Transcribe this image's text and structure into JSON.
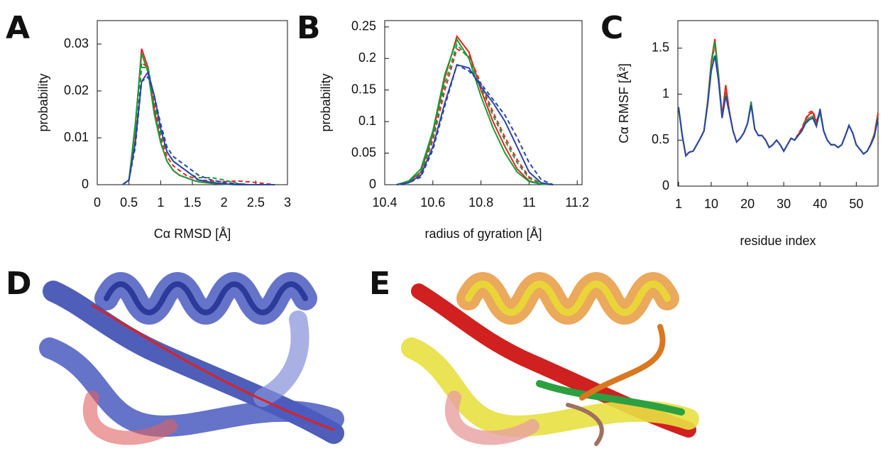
{
  "chart_data": [
    {
      "type": "line",
      "label": "A",
      "xlabel": "Cα RMSD [Å]",
      "ylabel": "probability",
      "xlim": [
        0,
        3
      ],
      "xticks": [
        0,
        0.5,
        1,
        1.5,
        2,
        2.5,
        3
      ],
      "ylim": [
        0,
        0.035
      ],
      "yticks": [
        0,
        0.01,
        0.02,
        0.03
      ],
      "x": [
        0.4,
        0.5,
        0.6,
        0.7,
        0.8,
        0.9,
        1.0,
        1.1,
        1.2,
        1.3,
        1.4,
        1.5,
        1.6,
        1.8,
        2.0,
        2.2,
        2.4,
        2.6,
        2.8
      ],
      "series": [
        {
          "color": "#e8231e",
          "dash": false,
          "values": [
            0,
            0.001,
            0.012,
            0.029,
            0.025,
            0.016,
            0.009,
            0.005,
            0.003,
            0.002,
            0.0015,
            0.001,
            0.0006,
            0.0003,
            0.0001,
            0,
            0,
            0,
            0
          ]
        },
        {
          "color": "#e8231e",
          "dash": true,
          "values": [
            0,
            0.001,
            0.011,
            0.026,
            0.025,
            0.017,
            0.01,
            0.006,
            0.004,
            0.003,
            0.002,
            0.0015,
            0.001,
            0.0008,
            0.0006,
            0.0008,
            0.0006,
            0.0003,
            0
          ]
        },
        {
          "color": "#1f9a3a",
          "dash": false,
          "values": [
            0,
            0.001,
            0.013,
            0.028,
            0.024,
            0.015,
            0.009,
            0.005,
            0.003,
            0.002,
            0.0015,
            0.001,
            0.0006,
            0.0003,
            0.0001,
            0,
            0,
            0,
            0
          ]
        },
        {
          "color": "#1f9a3a",
          "dash": true,
          "values": [
            0,
            0.001,
            0.01,
            0.025,
            0.025,
            0.018,
            0.011,
            0.007,
            0.005,
            0.004,
            0.003,
            0.002,
            0.0015,
            0.0015,
            0.001,
            0.0003,
            0,
            0,
            0
          ]
        },
        {
          "color": "#2a46a8",
          "dash": false,
          "values": [
            0,
            0.001,
            0.009,
            0.022,
            0.024,
            0.019,
            0.012,
            0.007,
            0.005,
            0.004,
            0.003,
            0.002,
            0.001,
            0.0005,
            0.0002,
            0,
            0,
            0,
            0
          ]
        },
        {
          "color": "#2a46a8",
          "dash": true,
          "values": [
            0,
            0.001,
            0.008,
            0.022,
            0.023,
            0.019,
            0.013,
            0.008,
            0.006,
            0.005,
            0.004,
            0.003,
            0.002,
            0.001,
            0.0005,
            0.0002,
            0,
            0,
            0
          ]
        }
      ]
    },
    {
      "type": "line",
      "label": "B",
      "xlabel": "radius of gyration [Å]",
      "ylabel": "probability",
      "xlim": [
        10.4,
        11.22
      ],
      "xticks": [
        10.4,
        10.6,
        10.8,
        11,
        11.2
      ],
      "ylim": [
        0,
        0.26
      ],
      "yticks": [
        0,
        0.05,
        0.1,
        0.15,
        0.2,
        0.25
      ],
      "x": [
        10.45,
        10.5,
        10.55,
        10.6,
        10.65,
        10.7,
        10.75,
        10.8,
        10.85,
        10.9,
        10.95,
        11,
        11.05,
        11.1
      ],
      "series": [
        {
          "color": "#e8231e",
          "dash": false,
          "values": [
            0,
            0.005,
            0.02,
            0.08,
            0.17,
            0.235,
            0.21,
            0.15,
            0.1,
            0.06,
            0.025,
            0.006,
            0.001,
            0
          ]
        },
        {
          "color": "#e8231e",
          "dash": true,
          "values": [
            0,
            0.004,
            0.018,
            0.07,
            0.15,
            0.215,
            0.205,
            0.16,
            0.115,
            0.075,
            0.04,
            0.012,
            0.002,
            0
          ]
        },
        {
          "color": "#1f9a3a",
          "dash": false,
          "values": [
            0,
            0.006,
            0.025,
            0.085,
            0.175,
            0.23,
            0.2,
            0.14,
            0.09,
            0.05,
            0.02,
            0.005,
            0.001,
            0
          ]
        },
        {
          "color": "#1f9a3a",
          "dash": true,
          "values": [
            0,
            0.005,
            0.02,
            0.075,
            0.16,
            0.222,
            0.2,
            0.155,
            0.11,
            0.07,
            0.035,
            0.01,
            0.002,
            0
          ]
        },
        {
          "color": "#2a46a8",
          "dash": false,
          "values": [
            0,
            0.003,
            0.015,
            0.06,
            0.13,
            0.19,
            0.185,
            0.155,
            0.13,
            0.1,
            0.06,
            0.02,
            0.003,
            0
          ]
        },
        {
          "color": "#2a46a8",
          "dash": true,
          "values": [
            0,
            0.003,
            0.012,
            0.055,
            0.125,
            0.19,
            0.18,
            0.16,
            0.135,
            0.11,
            0.075,
            0.035,
            0.008,
            0
          ]
        }
      ]
    },
    {
      "type": "line",
      "label": "C",
      "xlabel": "residue index",
      "ylabel": "Cα RMSF [Å²]",
      "xlim": [
        0.8,
        56
      ],
      "xticks": [
        1,
        10,
        20,
        30,
        40,
        50
      ],
      "ylim": [
        0,
        1.8
      ],
      "yticks": [
        0,
        0.5,
        1,
        1.5
      ],
      "x": [
        1,
        2,
        3,
        4,
        5,
        6,
        7,
        8,
        9,
        10,
        11,
        12,
        13,
        14,
        15,
        16,
        17,
        18,
        19,
        20,
        21,
        22,
        23,
        24,
        25,
        26,
        27,
        28,
        29,
        30,
        31,
        32,
        33,
        34,
        35,
        36,
        37,
        38,
        39,
        40,
        41,
        42,
        43,
        44,
        45,
        46,
        47,
        48,
        49,
        50,
        51,
        52,
        53,
        54,
        55,
        56
      ],
      "series": [
        {
          "color": "#e8231e",
          "dash": false,
          "values": [
            0.85,
            0.55,
            0.33,
            0.37,
            0.38,
            0.45,
            0.52,
            0.6,
            0.92,
            1.35,
            1.6,
            1.22,
            0.76,
            1.1,
            0.82,
            0.6,
            0.48,
            0.52,
            0.58,
            0.68,
            0.9,
            0.62,
            0.55,
            0.55,
            0.5,
            0.42,
            0.45,
            0.5,
            0.45,
            0.38,
            0.45,
            0.52,
            0.5,
            0.56,
            0.62,
            0.72,
            0.78,
            0.8,
            0.7,
            0.82,
            0.6,
            0.5,
            0.45,
            0.45,
            0.42,
            0.45,
            0.55,
            0.66,
            0.58,
            0.45,
            0.4,
            0.35,
            0.38,
            0.46,
            0.57,
            0.8
          ]
        },
        {
          "color": "#e8231e",
          "dash": true,
          "values": [
            0.85,
            0.55,
            0.34,
            0.37,
            0.38,
            0.45,
            0.52,
            0.6,
            0.9,
            1.3,
            1.55,
            1.2,
            0.75,
            1.02,
            0.8,
            0.6,
            0.48,
            0.52,
            0.58,
            0.68,
            0.9,
            0.62,
            0.55,
            0.55,
            0.5,
            0.42,
            0.45,
            0.5,
            0.45,
            0.38,
            0.45,
            0.52,
            0.5,
            0.57,
            0.63,
            0.73,
            0.8,
            0.82,
            0.7,
            0.82,
            0.6,
            0.5,
            0.45,
            0.45,
            0.42,
            0.45,
            0.55,
            0.66,
            0.58,
            0.45,
            0.4,
            0.35,
            0.38,
            0.46,
            0.56,
            0.78
          ]
        },
        {
          "color": "#1f9a3a",
          "dash": false,
          "values": [
            0.85,
            0.55,
            0.33,
            0.37,
            0.38,
            0.45,
            0.52,
            0.6,
            0.9,
            1.32,
            1.57,
            1.2,
            0.75,
            1.0,
            0.8,
            0.6,
            0.48,
            0.52,
            0.58,
            0.68,
            0.92,
            0.62,
            0.55,
            0.55,
            0.5,
            0.42,
            0.45,
            0.5,
            0.45,
            0.38,
            0.45,
            0.52,
            0.5,
            0.55,
            0.6,
            0.7,
            0.74,
            0.76,
            0.66,
            0.8,
            0.6,
            0.5,
            0.45,
            0.45,
            0.42,
            0.45,
            0.55,
            0.66,
            0.58,
            0.45,
            0.4,
            0.35,
            0.38,
            0.45,
            0.55,
            0.76
          ]
        },
        {
          "color": "#2a46a8",
          "dash": false,
          "values": [
            0.86,
            0.56,
            0.33,
            0.37,
            0.38,
            0.45,
            0.52,
            0.6,
            0.88,
            1.25,
            1.42,
            1.15,
            0.74,
            0.98,
            0.8,
            0.6,
            0.48,
            0.52,
            0.58,
            0.68,
            0.88,
            0.62,
            0.55,
            0.55,
            0.5,
            0.42,
            0.45,
            0.5,
            0.45,
            0.38,
            0.45,
            0.52,
            0.5,
            0.55,
            0.6,
            0.68,
            0.72,
            0.74,
            0.65,
            0.84,
            0.6,
            0.5,
            0.45,
            0.45,
            0.42,
            0.45,
            0.55,
            0.66,
            0.58,
            0.45,
            0.4,
            0.35,
            0.38,
            0.45,
            0.54,
            0.74
          ]
        }
      ]
    }
  ],
  "images": [
    {
      "label": "D"
    },
    {
      "label": "E"
    }
  ]
}
